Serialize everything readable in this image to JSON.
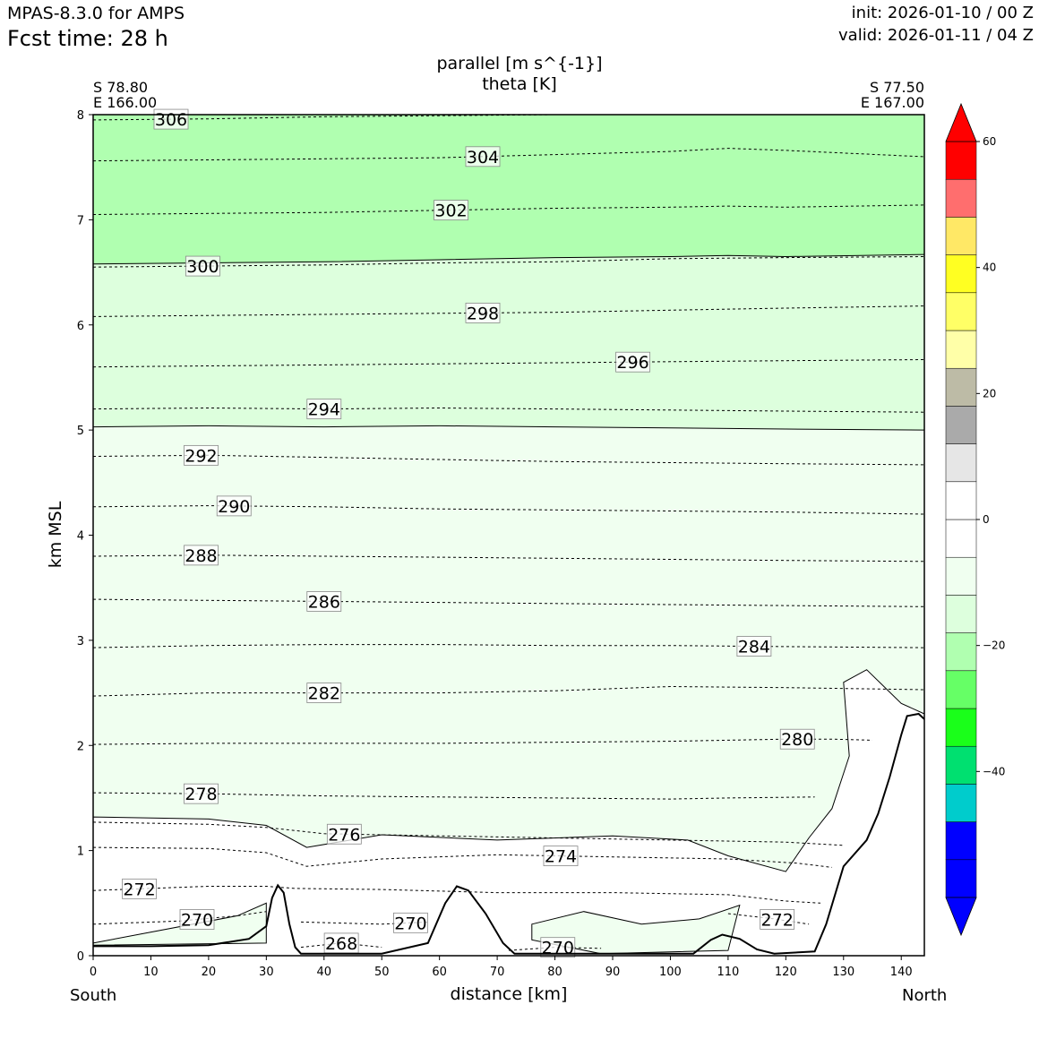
{
  "header": {
    "model": "MPAS-8.3.0 for AMPS",
    "fcst_time": "Fcst time:   28 h",
    "init": "init: 2026-01-10 / 00 Z",
    "valid": "valid: 2026-01-11 / 04 Z"
  },
  "corners": {
    "left_lat": "S 78.80",
    "left_lon": "E 166.00",
    "right_lat": "S 77.50",
    "right_lon": "E 167.00",
    "south": "South",
    "north": "North"
  },
  "colors": {
    "fill_300_plus": "#b0ffb0",
    "fill_294_300": "#ddffdd",
    "fill_0_to_m10": "#f0fff0",
    "axis": "#000000"
  },
  "chart_data": {
    "type": "contour",
    "title": "parallel [m s^{-1}]",
    "subtitle": "theta [K]",
    "xlabel": "distance [km]",
    "ylabel": "km MSL",
    "xlim": [
      0,
      144
    ],
    "ylim": [
      0,
      8
    ],
    "xticks": [
      0,
      10,
      20,
      30,
      40,
      50,
      60,
      70,
      80,
      90,
      100,
      110,
      120,
      130,
      140
    ],
    "yticks": [
      0,
      1,
      2,
      3,
      4,
      5,
      6,
      7,
      8
    ],
    "colorbar": {
      "range": [
        -60,
        60
      ],
      "tick_labels": [
        "60",
        "40",
        "20",
        "0",
        "−20",
        "−40"
      ],
      "tick_values": [
        60,
        40,
        20,
        0,
        -20,
        -40
      ],
      "colors": [
        "#0000ff",
        "#0000ff",
        "#0000ff",
        "#00cccc",
        "#00e070",
        "#1aff1a",
        "#66ff66",
        "#b0ffb0",
        "#ddffdd",
        "#f0fff0",
        "#ffffff",
        "#ffffff",
        "#e6e6e6",
        "#aaaaaa",
        "#bdbba6",
        "#ffffa8",
        "#ffff66",
        "#ffff22",
        "#ffe866",
        "#ff6e6e",
        "#ff0000",
        "#ff0000"
      ]
    },
    "theta_contours": [
      {
        "label": "306",
        "label_x": 13.5,
        "points": [
          [
            0,
            7.95
          ],
          [
            20,
            7.96
          ],
          [
            40,
            7.98
          ],
          [
            60,
            7.99
          ],
          [
            80,
            8.0
          ]
        ]
      },
      {
        "label": "304",
        "label_x": 67.5,
        "points": [
          [
            0,
            7.56
          ],
          [
            20,
            7.57
          ],
          [
            40,
            7.58
          ],
          [
            60,
            7.59
          ],
          [
            80,
            7.62
          ],
          [
            100,
            7.65
          ],
          [
            110,
            7.68
          ],
          [
            120,
            7.66
          ],
          [
            144,
            7.6
          ]
        ]
      },
      {
        "label": "302",
        "label_x": 62,
        "points": [
          [
            0,
            7.05
          ],
          [
            20,
            7.06
          ],
          [
            40,
            7.07
          ],
          [
            60,
            7.09
          ],
          [
            80,
            7.11
          ],
          [
            100,
            7.12
          ],
          [
            110,
            7.13
          ],
          [
            120,
            7.12
          ],
          [
            144,
            7.14
          ]
        ]
      },
      {
        "label": "300",
        "label_x": 19,
        "points": [
          [
            0,
            6.55
          ],
          [
            20,
            6.56
          ],
          [
            40,
            6.57
          ],
          [
            60,
            6.59
          ],
          [
            80,
            6.6
          ],
          [
            100,
            6.63
          ],
          [
            120,
            6.64
          ],
          [
            144,
            6.65
          ]
        ]
      },
      {
        "label": "298",
        "label_x": 67.5,
        "points": [
          [
            0,
            6.08
          ],
          [
            20,
            6.09
          ],
          [
            40,
            6.1
          ],
          [
            60,
            6.11
          ],
          [
            80,
            6.12
          ],
          [
            100,
            6.14
          ],
          [
            120,
            6.16
          ],
          [
            144,
            6.18
          ]
        ]
      },
      {
        "label": "296",
        "label_x": 93.5,
        "points": [
          [
            0,
            5.6
          ],
          [
            20,
            5.61
          ],
          [
            40,
            5.62
          ],
          [
            60,
            5.63
          ],
          [
            80,
            5.64
          ],
          [
            100,
            5.65
          ],
          [
            120,
            5.66
          ],
          [
            144,
            5.67
          ]
        ]
      },
      {
        "label": "294",
        "label_x": 40,
        "points": [
          [
            0,
            5.2
          ],
          [
            20,
            5.21
          ],
          [
            40,
            5.2
          ],
          [
            60,
            5.21
          ],
          [
            80,
            5.2
          ],
          [
            100,
            5.19
          ],
          [
            120,
            5.18
          ],
          [
            144,
            5.17
          ]
        ]
      },
      {
        "label": "292",
        "label_x": 18.7,
        "points": [
          [
            0,
            4.75
          ],
          [
            20,
            4.76
          ],
          [
            40,
            4.74
          ],
          [
            60,
            4.72
          ],
          [
            80,
            4.7
          ],
          [
            100,
            4.69
          ],
          [
            120,
            4.68
          ],
          [
            144,
            4.67
          ]
        ]
      },
      {
        "label": "290",
        "label_x": 24.4,
        "points": [
          [
            0,
            4.27
          ],
          [
            20,
            4.28
          ],
          [
            40,
            4.27
          ],
          [
            60,
            4.25
          ],
          [
            80,
            4.24
          ],
          [
            100,
            4.23
          ],
          [
            120,
            4.22
          ],
          [
            144,
            4.2
          ]
        ]
      },
      {
        "label": "288",
        "label_x": 18.7,
        "points": [
          [
            0,
            3.8
          ],
          [
            20,
            3.81
          ],
          [
            40,
            3.8
          ],
          [
            60,
            3.79
          ],
          [
            80,
            3.78
          ],
          [
            100,
            3.77
          ],
          [
            120,
            3.76
          ],
          [
            144,
            3.75
          ]
        ]
      },
      {
        "label": "286",
        "label_x": 40,
        "points": [
          [
            0,
            3.39
          ],
          [
            20,
            3.38
          ],
          [
            40,
            3.37
          ],
          [
            60,
            3.36
          ],
          [
            80,
            3.35
          ],
          [
            100,
            3.34
          ],
          [
            120,
            3.33
          ],
          [
            144,
            3.32
          ]
        ]
      },
      {
        "label": "284",
        "label_x": 114.5,
        "points": [
          [
            0,
            2.93
          ],
          [
            20,
            2.95
          ],
          [
            40,
            2.96
          ],
          [
            60,
            2.96
          ],
          [
            80,
            2.95
          ],
          [
            100,
            2.95
          ],
          [
            120,
            2.94
          ],
          [
            144,
            2.93
          ]
        ]
      },
      {
        "label": "282",
        "label_x": 40,
        "points": [
          [
            0,
            2.47
          ],
          [
            20,
            2.5
          ],
          [
            40,
            2.5
          ],
          [
            60,
            2.5
          ],
          [
            80,
            2.52
          ],
          [
            100,
            2.56
          ],
          [
            120,
            2.55
          ],
          [
            144,
            2.53
          ]
        ]
      },
      {
        "label": "280",
        "label_x": 122,
        "points": [
          [
            0,
            2.01
          ],
          [
            20,
            2.02
          ],
          [
            40,
            2.02
          ],
          [
            60,
            2.02
          ],
          [
            80,
            2.03
          ],
          [
            100,
            2.04
          ],
          [
            120,
            2.06
          ],
          [
            128,
            2.06
          ],
          [
            135,
            2.05
          ]
        ]
      },
      {
        "label": "278",
        "label_x": 18.7,
        "points": [
          [
            0,
            1.55
          ],
          [
            20,
            1.54
          ],
          [
            40,
            1.52
          ],
          [
            60,
            1.51
          ],
          [
            80,
            1.5
          ],
          [
            100,
            1.49
          ],
          [
            110,
            1.5
          ],
          [
            125,
            1.51
          ]
        ]
      },
      {
        "label": "276",
        "label_x": 43.5,
        "points": [
          [
            0,
            1.27
          ],
          [
            20,
            1.25
          ],
          [
            30,
            1.22
          ],
          [
            40,
            1.16
          ],
          [
            60,
            1.14
          ],
          [
            80,
            1.12
          ],
          [
            100,
            1.1
          ],
          [
            120,
            1.08
          ],
          [
            130,
            1.05
          ]
        ]
      },
      {
        "label": "274",
        "label_x": 81,
        "points": [
          [
            0,
            1.03
          ],
          [
            20,
            1.02
          ],
          [
            30,
            0.98
          ],
          [
            37,
            0.85
          ],
          [
            50,
            0.92
          ],
          [
            70,
            0.96
          ],
          [
            90,
            0.94
          ],
          [
            110,
            0.92
          ],
          [
            122,
            0.88
          ],
          [
            128,
            0.84
          ]
        ]
      },
      {
        "label": "272",
        "label_x": 8,
        "points": [
          [
            0,
            0.62
          ],
          [
            20,
            0.66
          ],
          [
            30,
            0.66
          ],
          [
            35,
            0.64
          ],
          [
            50,
            0.63
          ],
          [
            70,
            0.6
          ],
          [
            90,
            0.6
          ],
          [
            110,
            0.58
          ],
          [
            120,
            0.52
          ],
          [
            126,
            0.5
          ]
        ]
      },
      {
        "label": "270",
        "label_x": 18,
        "points": [
          [
            0,
            0.3
          ],
          [
            15,
            0.33
          ],
          [
            25,
            0.38
          ],
          [
            30,
            0.42
          ]
        ]
      },
      {
        "label": "270",
        "label_x": 55,
        "points": [
          [
            36,
            0.32
          ],
          [
            50,
            0.3
          ],
          [
            58,
            0.32
          ]
        ]
      },
      {
        "label": "270",
        "label_x": 80.5,
        "points": [
          [
            72,
            0.05
          ],
          [
            80,
            0.08
          ],
          [
            88,
            0.07
          ]
        ]
      },
      {
        "label": "268",
        "label_x": 43,
        "points": [
          [
            36,
            0.08
          ],
          [
            43,
            0.12
          ],
          [
            50,
            0.08
          ]
        ]
      },
      {
        "label": "272",
        "label_x": 118.5,
        "points": [
          [
            110,
            0.4
          ],
          [
            118,
            0.35
          ],
          [
            124,
            0.3
          ]
        ]
      }
    ],
    "terrain": [
      [
        0,
        0.09
      ],
      [
        10,
        0.09
      ],
      [
        20,
        0.1
      ],
      [
        27,
        0.16
      ],
      [
        30,
        0.28
      ],
      [
        31,
        0.55
      ],
      [
        32,
        0.67
      ],
      [
        33,
        0.6
      ],
      [
        34,
        0.3
      ],
      [
        35,
        0.08
      ],
      [
        36,
        0.02
      ],
      [
        50,
        0.02
      ],
      [
        58,
        0.12
      ],
      [
        61,
        0.5
      ],
      [
        63,
        0.66
      ],
      [
        65,
        0.62
      ],
      [
        68,
        0.4
      ],
      [
        71,
        0.12
      ],
      [
        73,
        0.02
      ],
      [
        104,
        0.02
      ],
      [
        107,
        0.15
      ],
      [
        109,
        0.2
      ],
      [
        112,
        0.16
      ],
      [
        115,
        0.06
      ],
      [
        118,
        0.02
      ],
      [
        125,
        0.04
      ],
      [
        127,
        0.3
      ],
      [
        130,
        0.85
      ],
      [
        134,
        1.1
      ],
      [
        136,
        1.35
      ],
      [
        138,
        1.7
      ],
      [
        140,
        2.1
      ],
      [
        141,
        2.28
      ],
      [
        143,
        2.3
      ],
      [
        144,
        2.25
      ]
    ]
  }
}
